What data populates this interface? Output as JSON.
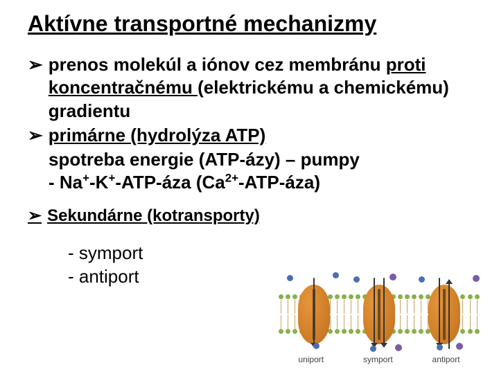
{
  "title": "Aktívne transportné mechanizmy",
  "bullet_marker": "➢",
  "bullets": {
    "b1_pre": "prenos molekúl a iónov cez membránu ",
    "b1_u": "proti koncentračnému ",
    "b1_post": "(elektrickému a chemickému) gradientu",
    "b2_u": "primárne (hydrolýza ATP)",
    "b2_line2": "spotreba energie (ATP-ázy) – pumpy",
    "b2_line3_pre": "- Na",
    "b2_line3_sup1": "+",
    "b2_line3_mid1": "-K",
    "b2_line3_sup2": "+",
    "b2_line3_mid2": "-ATP-áza (Ca",
    "b2_line3_sup3": "2+",
    "b2_line3_post": "-ATP-áza)"
  },
  "secondary": "Sekundárne (kotransporty)",
  "sublist": {
    "s1": "- symport",
    "s2": "- antiport"
  },
  "diagram": {
    "labels": [
      "uniport",
      "symport",
      "antiport"
    ],
    "label_color": "#424242",
    "lipid_head_color": "#88b04b",
    "tail_color": "#c9a15a",
    "protein_color": "#e6953a",
    "protein_shadow": "#c47420",
    "channel_color": "#6e4b1f",
    "arrow_color": "#333333",
    "mol_colors": {
      "blue": "#4a6fb3",
      "purple": "#7b5aa6"
    },
    "background": "#ffffff",
    "protein_positions": [
      28,
      122,
      216
    ],
    "lipid_count": 29
  },
  "colors": {
    "text": "#000000",
    "bg": "#ffffff"
  }
}
